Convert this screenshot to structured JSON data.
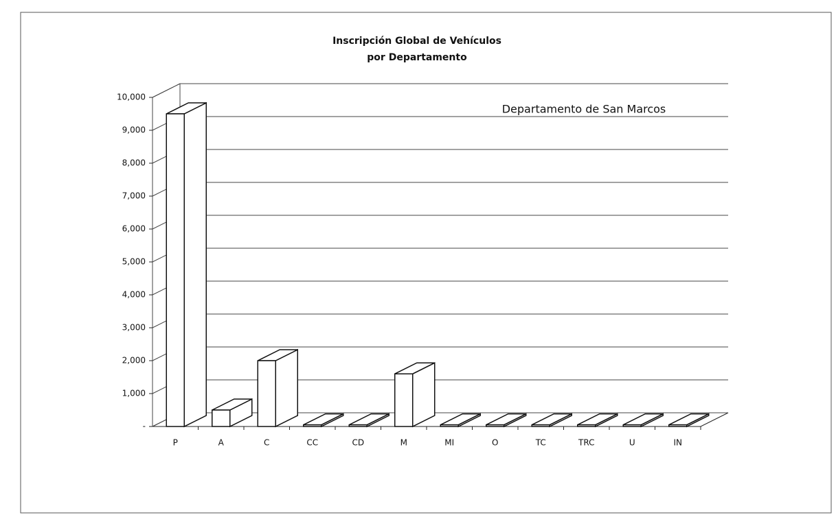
{
  "chart_data": {
    "type": "bar3d",
    "title": [
      "Inscripción Global de Vehículos",
      "por Departamento"
    ],
    "annotation": "Departamento de San Marcos",
    "categories": [
      "P",
      "A",
      "C",
      "CC",
      "CD",
      "M",
      "MI",
      "O",
      "TC",
      "TRC",
      "U",
      "IN"
    ],
    "values": [
      9500,
      500,
      2000,
      50,
      50,
      1600,
      50,
      50,
      50,
      50,
      50,
      50
    ],
    "color": "#ffffff",
    "ylim": [
      0,
      10000
    ],
    "yticks": [
      {
        "value": 0,
        "label": "-"
      },
      {
        "value": 1000,
        "label": "1,000"
      },
      {
        "value": 2000,
        "label": "2,000"
      },
      {
        "value": 3000,
        "label": "3,000"
      },
      {
        "value": 4000,
        "label": "4,000"
      },
      {
        "value": 5000,
        "label": "5,000"
      },
      {
        "value": 6000,
        "label": "6,000"
      },
      {
        "value": 7000,
        "label": "7,000"
      },
      {
        "value": 8000,
        "label": "8,000"
      },
      {
        "value": 9000,
        "label": "9,000"
      },
      {
        "value": 10000,
        "label": "10,000"
      }
    ],
    "grid": true
  }
}
